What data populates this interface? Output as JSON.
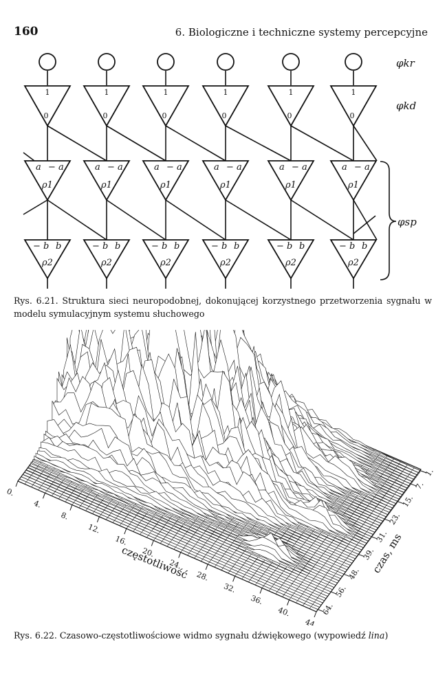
{
  "header": {
    "page_number": "160",
    "running_head": "6. Biologiczne i techniczne systemy percepcyjne"
  },
  "figure_6_21": {
    "labels": {
      "phi_kr": "φkr",
      "phi_kd": "φkd",
      "phi_sp": "φsp"
    },
    "layer1": {
      "top": "1",
      "bottom": "0"
    },
    "layer2": {
      "left": "a",
      "right": "− a",
      "rho": "ρ1"
    },
    "layer3": {
      "left": "− b",
      "right": "b",
      "rho": "ρ2"
    },
    "caption": "Rys. 6.21. Struktura sieci neuropodobnej, dokonującej korzystnego przetworzenia sygnału w modelu symulacyjnym systemu słuchowego"
  },
  "figure_6_22": {
    "freq_ticks": [
      "0.",
      "4.",
      "8.",
      "12.",
      "16.",
      "20.",
      "24.",
      "28.",
      "32.",
      "36.",
      "40.",
      "44."
    ],
    "freq_label": "częstotliwość",
    "time_ticks": [
      "1.",
      "7.",
      "15.",
      "23.",
      "31.",
      "39.",
      "48.",
      "56.",
      "64."
    ],
    "time_label": "czas, ms",
    "caption_prefix": "Rys. 6.22. Czasowo-częstotliwościowe widmo sygnału dźwiękowego (wypowiedź ",
    "caption_word": "lina",
    "caption_suffix": ")"
  }
}
